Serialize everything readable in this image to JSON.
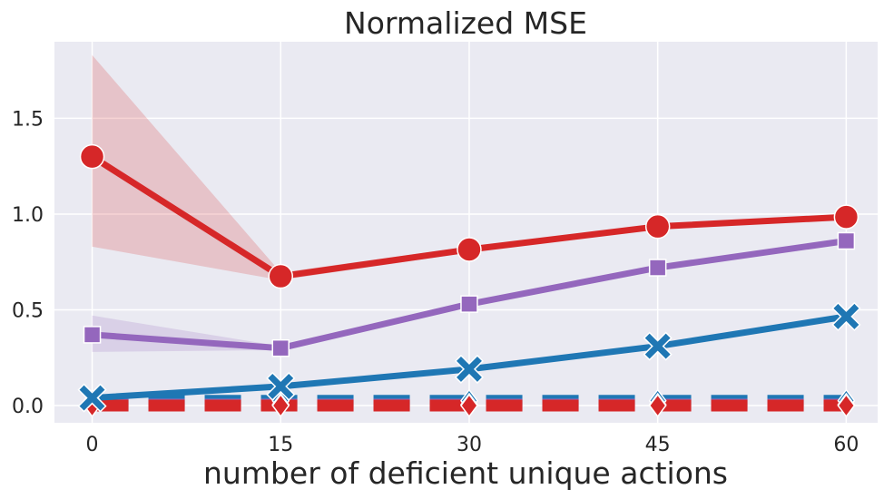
{
  "chart_data": {
    "type": "line",
    "title": "Normalized MSE",
    "xlabel": "number of deficient unique actions",
    "ylabel": "",
    "x": [
      0,
      15,
      30,
      45,
      60
    ],
    "xticks": [
      "0",
      "15",
      "30",
      "45",
      "60"
    ],
    "yticks": [
      "0.0",
      "0.5",
      "1.0",
      "1.5"
    ],
    "ytick_values": [
      0,
      0.5,
      1.0,
      1.5
    ],
    "xlim": [
      -3,
      62.5
    ],
    "ylim": [
      -0.09,
      1.9
    ],
    "grid": true,
    "legend": "none",
    "background": "#eaeaf2",
    "series": [
      {
        "color": "#d62728",
        "marker": "circle",
        "style": "solid",
        "values": [
          1.3,
          0.675,
          0.815,
          0.935,
          0.985
        ],
        "band_low": [
          0.83,
          0.655,
          0.8,
          0.925,
          0.975
        ],
        "band_high": [
          1.83,
          0.695,
          0.83,
          0.945,
          0.995
        ]
      },
      {
        "color": "#9467bd",
        "marker": "square",
        "style": "solid",
        "values": [
          0.37,
          0.3,
          0.53,
          0.72,
          0.86
        ],
        "band_low": [
          0.28,
          0.29,
          0.52,
          0.71,
          0.85
        ],
        "band_high": [
          0.47,
          0.31,
          0.54,
          0.73,
          0.87
        ]
      },
      {
        "color": "#1f77b4",
        "marker": "x",
        "style": "solid",
        "values": [
          0.04,
          0.1,
          0.19,
          0.31,
          0.465
        ]
      },
      {
        "color": "#1f77b4",
        "marker": "diamond",
        "style": "dashed",
        "values": [
          0.025,
          0.025,
          0.025,
          0.025,
          0.025
        ]
      },
      {
        "color": "#9467bd",
        "marker": "diamond",
        "style": "dashed",
        "values": [
          0.005,
          0.005,
          0.005,
          0.005,
          0.005
        ]
      },
      {
        "color": "#d62728",
        "marker": "diamond",
        "style": "dashed",
        "values": [
          0.0,
          0.0,
          0.0,
          0.0,
          0.0
        ]
      }
    ]
  }
}
